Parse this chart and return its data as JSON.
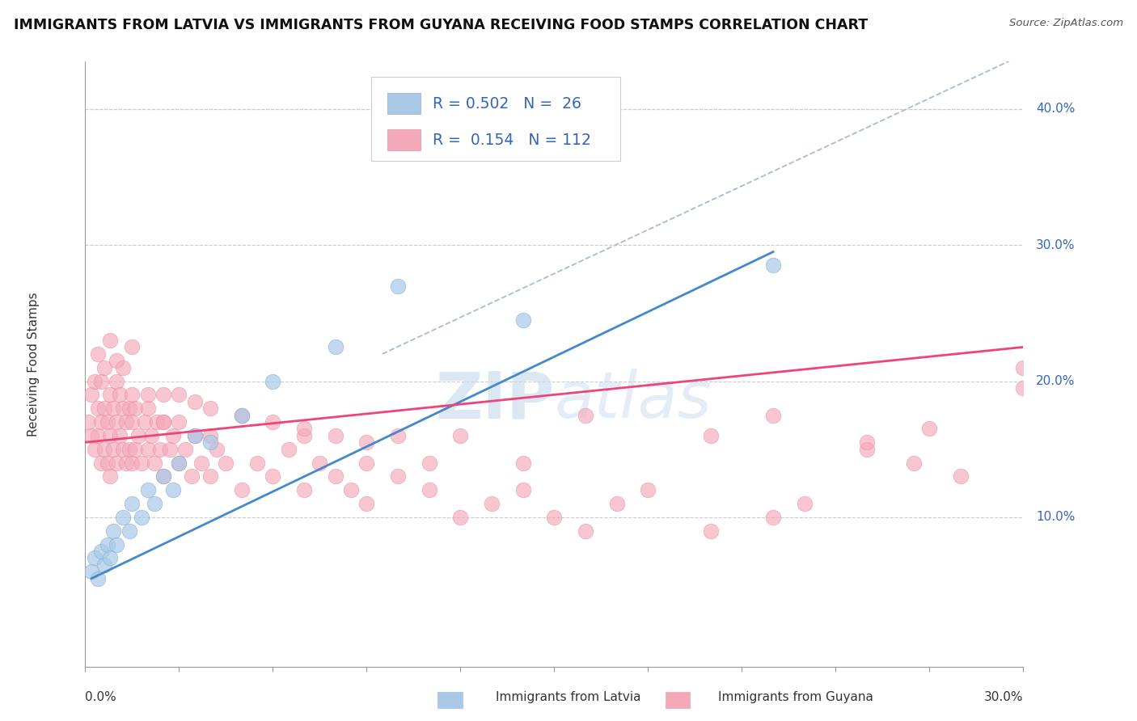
{
  "title": "IMMIGRANTS FROM LATVIA VS IMMIGRANTS FROM GUYANA RECEIVING FOOD STAMPS CORRELATION CHART",
  "source": "Source: ZipAtlas.com",
  "ylabel": "Receiving Food Stamps",
  "y_tick_labels": [
    "10.0%",
    "20.0%",
    "30.0%",
    "40.0%"
  ],
  "y_tick_values": [
    0.1,
    0.2,
    0.3,
    0.4
  ],
  "xlim": [
    0.0,
    0.3
  ],
  "ylim": [
    -0.01,
    0.435
  ],
  "watermark": "ZIPatlas",
  "color_latvia": "#a8c8e8",
  "color_guyana": "#f4a8b8",
  "color_latvia_edge": "#7aaad0",
  "color_guyana_edge": "#e888a0",
  "trend_color_latvia": "#4488cc",
  "trend_color_guyana": "#ee4477",
  "trend_dashed_color": "#aabbcc",
  "legend_text_color": "#3366bb",
  "latvia_x": [
    0.002,
    0.003,
    0.004,
    0.005,
    0.006,
    0.007,
    0.008,
    0.009,
    0.01,
    0.012,
    0.014,
    0.015,
    0.018,
    0.02,
    0.022,
    0.025,
    0.028,
    0.03,
    0.035,
    0.04,
    0.05,
    0.06,
    0.08,
    0.1,
    0.14,
    0.22
  ],
  "latvia_y": [
    0.06,
    0.07,
    0.055,
    0.075,
    0.065,
    0.08,
    0.07,
    0.09,
    0.08,
    0.1,
    0.09,
    0.11,
    0.1,
    0.12,
    0.11,
    0.13,
    0.12,
    0.14,
    0.16,
    0.155,
    0.175,
    0.2,
    0.225,
    0.27,
    0.245,
    0.285
  ],
  "guyana_x": [
    0.001,
    0.002,
    0.002,
    0.003,
    0.003,
    0.004,
    0.004,
    0.005,
    0.005,
    0.005,
    0.006,
    0.006,
    0.007,
    0.007,
    0.008,
    0.008,
    0.008,
    0.009,
    0.009,
    0.01,
    0.01,
    0.01,
    0.011,
    0.011,
    0.012,
    0.012,
    0.013,
    0.013,
    0.014,
    0.014,
    0.015,
    0.015,
    0.016,
    0.016,
    0.017,
    0.018,
    0.019,
    0.02,
    0.02,
    0.021,
    0.022,
    0.023,
    0.024,
    0.025,
    0.025,
    0.027,
    0.028,
    0.03,
    0.03,
    0.032,
    0.034,
    0.035,
    0.037,
    0.04,
    0.042,
    0.045,
    0.05,
    0.055,
    0.06,
    0.065,
    0.07,
    0.075,
    0.08,
    0.085,
    0.09,
    0.1,
    0.11,
    0.12,
    0.13,
    0.14,
    0.15,
    0.16,
    0.17,
    0.18,
    0.2,
    0.22,
    0.23,
    0.25,
    0.265,
    0.28,
    0.3
  ],
  "guyana_y": [
    0.17,
    0.16,
    0.19,
    0.15,
    0.2,
    0.16,
    0.18,
    0.14,
    0.17,
    0.2,
    0.15,
    0.18,
    0.14,
    0.17,
    0.13,
    0.16,
    0.19,
    0.15,
    0.18,
    0.14,
    0.17,
    0.2,
    0.16,
    0.19,
    0.15,
    0.18,
    0.14,
    0.17,
    0.15,
    0.18,
    0.14,
    0.17,
    0.15,
    0.18,
    0.16,
    0.14,
    0.17,
    0.15,
    0.18,
    0.16,
    0.14,
    0.17,
    0.15,
    0.13,
    0.17,
    0.15,
    0.16,
    0.14,
    0.17,
    0.15,
    0.13,
    0.16,
    0.14,
    0.13,
    0.15,
    0.14,
    0.12,
    0.14,
    0.13,
    0.15,
    0.12,
    0.14,
    0.13,
    0.12,
    0.11,
    0.13,
    0.12,
    0.1,
    0.11,
    0.12,
    0.1,
    0.09,
    0.11,
    0.12,
    0.09,
    0.1,
    0.11,
    0.15,
    0.14,
    0.13,
    0.21
  ],
  "guyana_extra_x": [
    0.015,
    0.025,
    0.04,
    0.07,
    0.09,
    0.1,
    0.11,
    0.12,
    0.14,
    0.16,
    0.2,
    0.22,
    0.25,
    0.27,
    0.3,
    0.004,
    0.006,
    0.008,
    0.01,
    0.012,
    0.015,
    0.02,
    0.025,
    0.03,
    0.035,
    0.04,
    0.05,
    0.06,
    0.07,
    0.08,
    0.09
  ],
  "guyana_extra_y": [
    0.19,
    0.17,
    0.16,
    0.16,
    0.14,
    0.16,
    0.14,
    0.16,
    0.14,
    0.175,
    0.16,
    0.175,
    0.155,
    0.165,
    0.195,
    0.22,
    0.21,
    0.23,
    0.215,
    0.21,
    0.225,
    0.19,
    0.19,
    0.19,
    0.185,
    0.18,
    0.175,
    0.17,
    0.165,
    0.16,
    0.155
  ]
}
